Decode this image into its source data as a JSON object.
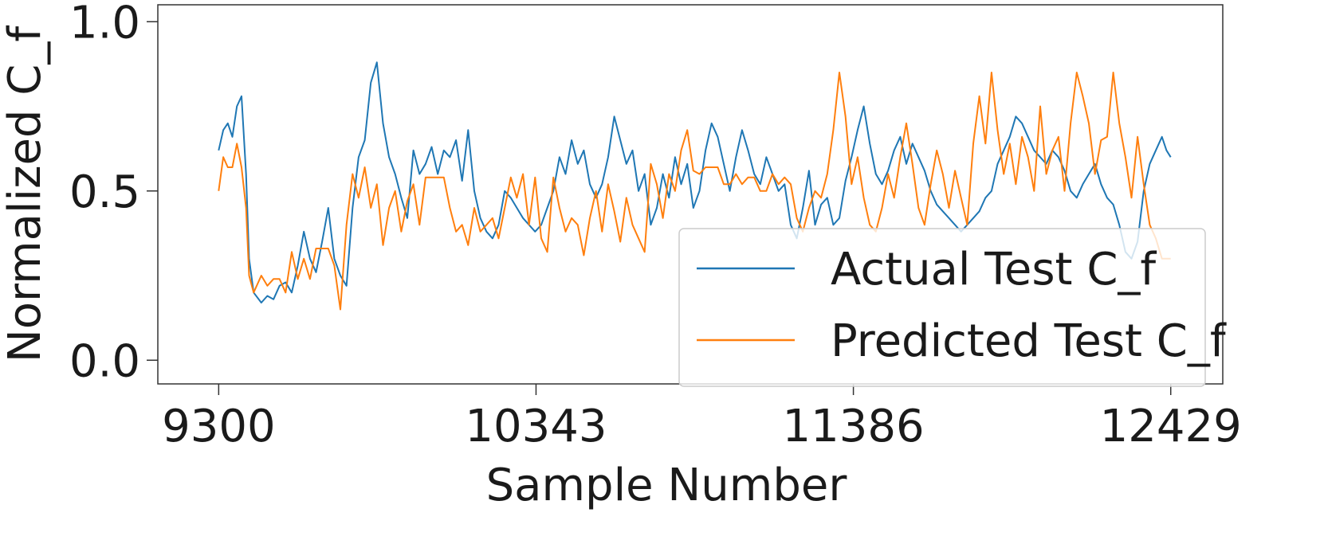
{
  "chart_data": {
    "type": "line",
    "title": "",
    "xlabel": "Sample Number",
    "ylabel": "Normalized C_f",
    "xlim": [
      9100,
      12600
    ],
    "ylim": [
      -0.07,
      1.05
    ],
    "xticks": [
      9300,
      10343,
      11386,
      12429
    ],
    "xtick_labels": [
      "9300",
      "10343",
      "11386",
      "12429"
    ],
    "yticks": [
      0.0,
      0.5,
      1.0
    ],
    "ytick_labels": [
      "0.0",
      "0.5",
      "1.0"
    ],
    "grid": false,
    "legend_position": "lower-right",
    "series": [
      {
        "name": "Actual Test C_f",
        "color": "#1f77b4",
        "x": [
          9300,
          9315,
          9330,
          9345,
          9360,
          9375,
          9390,
          9400,
          9415,
          9440,
          9460,
          9480,
          9500,
          9520,
          9540,
          9560,
          9580,
          9600,
          9620,
          9640,
          9660,
          9680,
          9700,
          9720,
          9740,
          9760,
          9780,
          9800,
          9820,
          9840,
          9860,
          9880,
          9900,
          9920,
          9940,
          9960,
          9980,
          10000,
          10020,
          10040,
          10060,
          10080,
          10100,
          10120,
          10140,
          10160,
          10180,
          10200,
          10220,
          10240,
          10260,
          10280,
          10300,
          10320,
          10340,
          10360,
          10380,
          10400,
          10420,
          10440,
          10460,
          10480,
          10500,
          10520,
          10540,
          10560,
          10580,
          10600,
          10620,
          10640,
          10660,
          10680,
          10700,
          10720,
          10740,
          10760,
          10780,
          10800,
          10820,
          10840,
          10860,
          10880,
          10900,
          10920,
          10940,
          10960,
          10980,
          11000,
          11020,
          11040,
          11060,
          11080,
          11100,
          11120,
          11140,
          11160,
          11180,
          11200,
          11220,
          11240,
          11260,
          11280,
          11300,
          11320,
          11340,
          11360,
          11380,
          11400,
          11420,
          11440,
          11460,
          11480,
          11500,
          11520,
          11540,
          11560,
          11580,
          11600,
          11620,
          11640,
          11660,
          11680,
          11700,
          11720,
          11740,
          11760,
          11780,
          11800,
          11820,
          11840,
          11860,
          11880,
          11900,
          11920,
          11940,
          11960,
          11980,
          12000,
          12020,
          12040,
          12060,
          12080,
          12100,
          12120,
          12140,
          12160,
          12180,
          12200,
          12220,
          12240,
          12260,
          12280,
          12300,
          12320,
          12340,
          12360,
          12380,
          12400,
          12415,
          12429
        ],
        "y": [
          0.62,
          0.68,
          0.7,
          0.66,
          0.75,
          0.78,
          0.55,
          0.3,
          0.2,
          0.17,
          0.19,
          0.18,
          0.22,
          0.23,
          0.2,
          0.28,
          0.38,
          0.3,
          0.26,
          0.35,
          0.45,
          0.3,
          0.25,
          0.22,
          0.45,
          0.6,
          0.65,
          0.82,
          0.88,
          0.7,
          0.6,
          0.55,
          0.48,
          0.42,
          0.62,
          0.55,
          0.58,
          0.63,
          0.55,
          0.62,
          0.6,
          0.65,
          0.53,
          0.68,
          0.5,
          0.42,
          0.38,
          0.36,
          0.4,
          0.5,
          0.48,
          0.45,
          0.42,
          0.4,
          0.38,
          0.4,
          0.45,
          0.5,
          0.6,
          0.55,
          0.65,
          0.58,
          0.62,
          0.52,
          0.48,
          0.52,
          0.6,
          0.72,
          0.65,
          0.58,
          0.62,
          0.5,
          0.55,
          0.4,
          0.45,
          0.55,
          0.48,
          0.6,
          0.52,
          0.58,
          0.45,
          0.5,
          0.62,
          0.7,
          0.66,
          0.58,
          0.5,
          0.6,
          0.68,
          0.62,
          0.55,
          0.52,
          0.6,
          0.55,
          0.5,
          0.52,
          0.4,
          0.36,
          0.45,
          0.56,
          0.4,
          0.46,
          0.48,
          0.4,
          0.42,
          0.53,
          0.6,
          0.68,
          0.75,
          0.64,
          0.55,
          0.52,
          0.56,
          0.62,
          0.66,
          0.58,
          0.64,
          0.6,
          0.56,
          0.5,
          0.46,
          0.44,
          0.42,
          0.4,
          0.38,
          0.4,
          0.42,
          0.44,
          0.48,
          0.5,
          0.58,
          0.62,
          0.66,
          0.72,
          0.7,
          0.66,
          0.62,
          0.6,
          0.58,
          0.62,
          0.6,
          0.56,
          0.5,
          0.48,
          0.52,
          0.55,
          0.58,
          0.52,
          0.48,
          0.46,
          0.4,
          0.32,
          0.3,
          0.35,
          0.5,
          0.58,
          0.62,
          0.66,
          0.62,
          0.6
        ]
      },
      {
        "name": "Predicted Test C_f",
        "color": "#ff7f0e",
        "x": [
          9300,
          9315,
          9330,
          9345,
          9360,
          9375,
          9390,
          9400,
          9415,
          9440,
          9460,
          9480,
          9500,
          9520,
          9540,
          9560,
          9580,
          9600,
          9620,
          9640,
          9660,
          9680,
          9700,
          9720,
          9740,
          9760,
          9780,
          9800,
          9820,
          9840,
          9860,
          9880,
          9900,
          9920,
          9940,
          9960,
          9980,
          10000,
          10020,
          10040,
          10060,
          10080,
          10100,
          10120,
          10140,
          10160,
          10180,
          10200,
          10220,
          10240,
          10260,
          10280,
          10300,
          10320,
          10340,
          10360,
          10380,
          10400,
          10420,
          10440,
          10460,
          10480,
          10500,
          10520,
          10540,
          10560,
          10580,
          10600,
          10620,
          10640,
          10660,
          10680,
          10700,
          10720,
          10740,
          10760,
          10780,
          10800,
          10820,
          10840,
          10860,
          10880,
          10900,
          10920,
          10940,
          10960,
          10980,
          11000,
          11020,
          11040,
          11060,
          11080,
          11100,
          11120,
          11140,
          11160,
          11180,
          11200,
          11220,
          11240,
          11260,
          11280,
          11300,
          11320,
          11340,
          11360,
          11380,
          11400,
          11420,
          11440,
          11460,
          11480,
          11500,
          11520,
          11540,
          11560,
          11580,
          11600,
          11620,
          11640,
          11660,
          11680,
          11700,
          11720,
          11740,
          11760,
          11780,
          11800,
          11820,
          11840,
          11860,
          11880,
          11900,
          11920,
          11940,
          11960,
          11980,
          12000,
          12020,
          12040,
          12060,
          12080,
          12100,
          12120,
          12140,
          12160,
          12180,
          12200,
          12220,
          12240,
          12260,
          12280,
          12300,
          12320,
          12340,
          12360,
          12380,
          12400,
          12415,
          12429
        ],
        "y": [
          0.5,
          0.6,
          0.57,
          0.57,
          0.64,
          0.57,
          0.45,
          0.25,
          0.2,
          0.25,
          0.22,
          0.24,
          0.24,
          0.2,
          0.32,
          0.24,
          0.3,
          0.24,
          0.33,
          0.33,
          0.33,
          0.28,
          0.15,
          0.4,
          0.55,
          0.48,
          0.57,
          0.45,
          0.52,
          0.34,
          0.45,
          0.5,
          0.38,
          0.47,
          0.52,
          0.4,
          0.54,
          0.54,
          0.54,
          0.54,
          0.45,
          0.38,
          0.4,
          0.34,
          0.45,
          0.38,
          0.4,
          0.42,
          0.36,
          0.45,
          0.54,
          0.48,
          0.55,
          0.4,
          0.54,
          0.36,
          0.32,
          0.54,
          0.45,
          0.38,
          0.42,
          0.4,
          0.31,
          0.42,
          0.5,
          0.38,
          0.52,
          0.44,
          0.35,
          0.48,
          0.4,
          0.36,
          0.32,
          0.58,
          0.52,
          0.42,
          0.55,
          0.5,
          0.62,
          0.68,
          0.56,
          0.55,
          0.57,
          0.57,
          0.57,
          0.52,
          0.52,
          0.55,
          0.52,
          0.54,
          0.54,
          0.5,
          0.5,
          0.55,
          0.52,
          0.54,
          0.52,
          0.42,
          0.38,
          0.45,
          0.5,
          0.48,
          0.55,
          0.68,
          0.85,
          0.72,
          0.52,
          0.6,
          0.48,
          0.4,
          0.38,
          0.45,
          0.55,
          0.48,
          0.6,
          0.7,
          0.58,
          0.45,
          0.4,
          0.52,
          0.62,
          0.55,
          0.45,
          0.56,
          0.48,
          0.4,
          0.64,
          0.78,
          0.64,
          0.85,
          0.68,
          0.55,
          0.64,
          0.52,
          0.66,
          0.6,
          0.5,
          0.75,
          0.55,
          0.62,
          0.66,
          0.5,
          0.7,
          0.85,
          0.78,
          0.7,
          0.55,
          0.65,
          0.66,
          0.85,
          0.7,
          0.6,
          0.48,
          0.66,
          0.52,
          0.4,
          0.36,
          0.3,
          0.3,
          0.3
        ]
      }
    ]
  }
}
